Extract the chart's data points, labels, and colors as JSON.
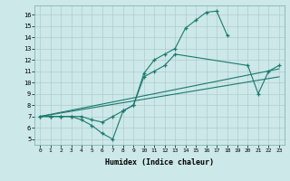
{
  "line1_x": [
    0,
    1,
    2,
    3,
    4,
    5,
    6,
    7,
    8,
    9,
    10,
    11,
    12,
    13,
    14,
    15,
    16,
    17,
    18
  ],
  "line1_y": [
    7,
    7,
    7,
    7,
    6.7,
    6.2,
    5.5,
    5.0,
    7.5,
    8.0,
    10.8,
    12.0,
    12.5,
    13.0,
    14.8,
    15.5,
    16.2,
    16.3,
    14.2
  ],
  "line2_x": [
    0,
    1,
    2,
    3,
    4,
    5,
    6,
    7,
    8,
    9,
    10,
    11,
    12,
    13,
    20,
    21,
    22,
    23
  ],
  "line2_y": [
    7,
    7,
    7,
    7,
    7,
    6.7,
    6.5,
    7.0,
    7.5,
    8.0,
    10.5,
    11.0,
    11.5,
    12.5,
    11.5,
    9.0,
    11.0,
    11.5
  ],
  "line3_x": [
    0,
    23
  ],
  "line3_y": [
    7,
    11.2
  ],
  "line4_x": [
    0,
    23
  ],
  "line4_y": [
    7,
    10.5
  ],
  "color": "#1a7a6e",
  "bg_color": "#cce8e8",
  "grid_major_color": "#b0cccc",
  "grid_minor_color": "#c4dede",
  "xlabel": "Humidex (Indice chaleur)",
  "xlim": [
    -0.5,
    23.5
  ],
  "ylim": [
    4.5,
    16.8
  ],
  "xticks": [
    0,
    1,
    2,
    3,
    4,
    5,
    6,
    7,
    8,
    9,
    10,
    11,
    12,
    13,
    14,
    15,
    16,
    17,
    18,
    19,
    20,
    21,
    22,
    23
  ],
  "yticks": [
    5,
    6,
    7,
    8,
    9,
    10,
    11,
    12,
    13,
    14,
    15,
    16
  ],
  "xtick_labels": [
    "0",
    "1",
    "2",
    "3",
    "4",
    "5",
    "6",
    "7",
    "8",
    "9",
    "10",
    "11",
    "12",
    "13",
    "14",
    "15",
    "16",
    "17",
    "18",
    "19",
    "20",
    "21",
    "22",
    "23"
  ],
  "ytick_labels": [
    "5",
    "6",
    "7",
    "8",
    "9",
    "10",
    "11",
    "12",
    "13",
    "14",
    "15",
    "16"
  ]
}
